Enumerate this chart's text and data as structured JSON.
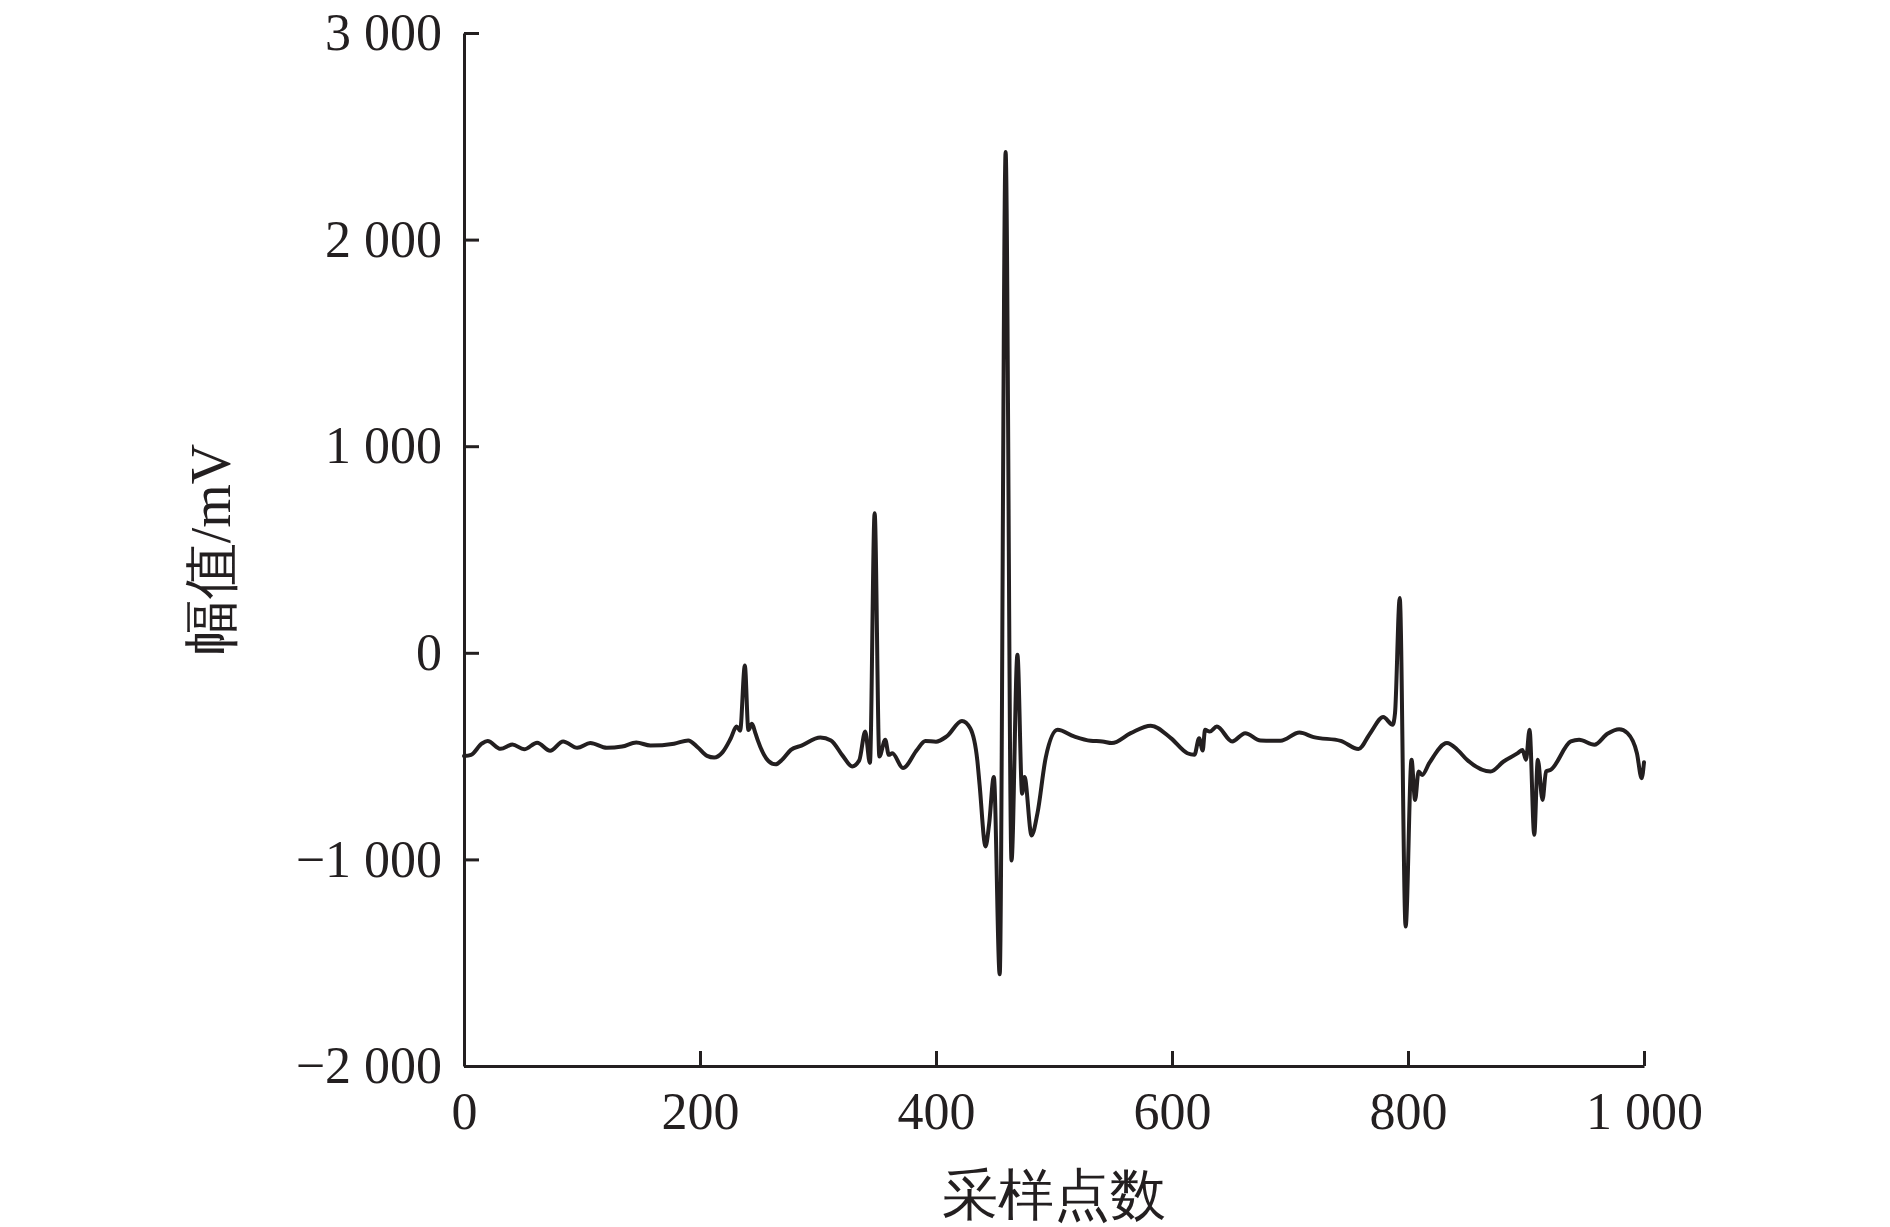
{
  "chart_data": {
    "type": "line",
    "xlabel": "采样点数",
    "ylabel": "幅值/mV",
    "x": [
      0,
      6,
      15,
      20,
      31,
      41,
      51,
      62,
      73,
      84,
      96,
      107,
      121,
      134,
      146,
      158,
      178,
      190,
      198,
      206,
      212,
      219,
      226,
      231,
      234,
      238,
      241,
      244,
      247,
      249,
      258,
      264,
      270,
      277,
      286,
      302,
      311,
      321,
      329,
      335,
      340,
      344,
      348,
      352,
      357,
      360,
      363,
      372,
      384,
      391,
      400,
      409,
      422,
      429,
      435,
      437,
      442,
      445,
      449,
      454,
      459,
      464,
      469,
      473,
      475,
      481,
      486,
      493,
      503,
      517,
      531,
      541,
      549,
      565,
      582,
      599,
      613,
      619,
      623,
      626,
      628,
      632,
      638,
      651,
      662,
      675,
      692,
      708,
      720,
      743,
      758,
      768,
      779,
      787,
      789,
      793,
      798,
      803,
      806,
      809,
      812,
      818,
      833,
      842,
      850,
      870,
      881,
      893,
      897,
      900,
      903,
      907,
      910,
      914,
      917,
      921,
      938,
      945,
      958,
      969,
      979,
      986,
      994,
      998,
      1000
    ],
    "series": [
      {
        "color": "#231f20",
        "values": [
          -500,
          -494,
          -440,
          -427,
          -465,
          -444,
          -467,
          -435,
          -474,
          -429,
          -460,
          -437,
          -460,
          -454,
          -434,
          -449,
          -440,
          -424,
          -457,
          -499,
          -507,
          -482,
          -415,
          -357,
          -377,
          -62,
          -374,
          -344,
          -390,
          -424,
          -524,
          -540,
          -515,
          -470,
          -449,
          -410,
          -424,
          -499,
          -550,
          -520,
          -381,
          -534,
          676,
          -502,
          -421,
          -494,
          -486,
          -558,
          -469,
          -427,
          -430,
          -405,
          -330,
          -365,
          -520,
          -642,
          -937,
          -830,
          -601,
          -1556,
          2424,
          -1005,
          -10,
          -682,
          -601,
          -884,
          -776,
          -507,
          -373,
          -405,
          -426,
          -429,
          -437,
          -389,
          -353,
          -413,
          -486,
          -494,
          -413,
          -473,
          -373,
          -381,
          -357,
          -429,
          -389,
          -424,
          -426,
          -386,
          -408,
          -426,
          -466,
          -389,
          -311,
          -348,
          -292,
          265,
          -1325,
          -518,
          -712,
          -574,
          -591,
          -534,
          -437,
          -470,
          -518,
          -574,
          -526,
          -486,
          -470,
          -518,
          -373,
          -881,
          -518,
          -712,
          -574,
          -566,
          -429,
          -421,
          -445,
          -392,
          -370,
          -389,
          -486,
          -607,
          -530
        ]
      }
    ],
    "xlim": [
      0,
      1000
    ],
    "ylim": [
      -2000,
      3000
    ],
    "xticks": [
      0,
      200,
      400,
      600,
      800,
      {
        "value": 1000,
        "label": "1 000"
      }
    ],
    "yticks": [
      {
        "value": -2000,
        "label": "−2 000"
      },
      {
        "value": -1000,
        "label": "−1 000"
      },
      0,
      {
        "value": 1000,
        "label": "1 000"
      },
      {
        "value": 2000,
        "label": "2 000"
      },
      {
        "value": 3000,
        "label": "3 000"
      }
    ],
    "line_style": "solid"
  }
}
